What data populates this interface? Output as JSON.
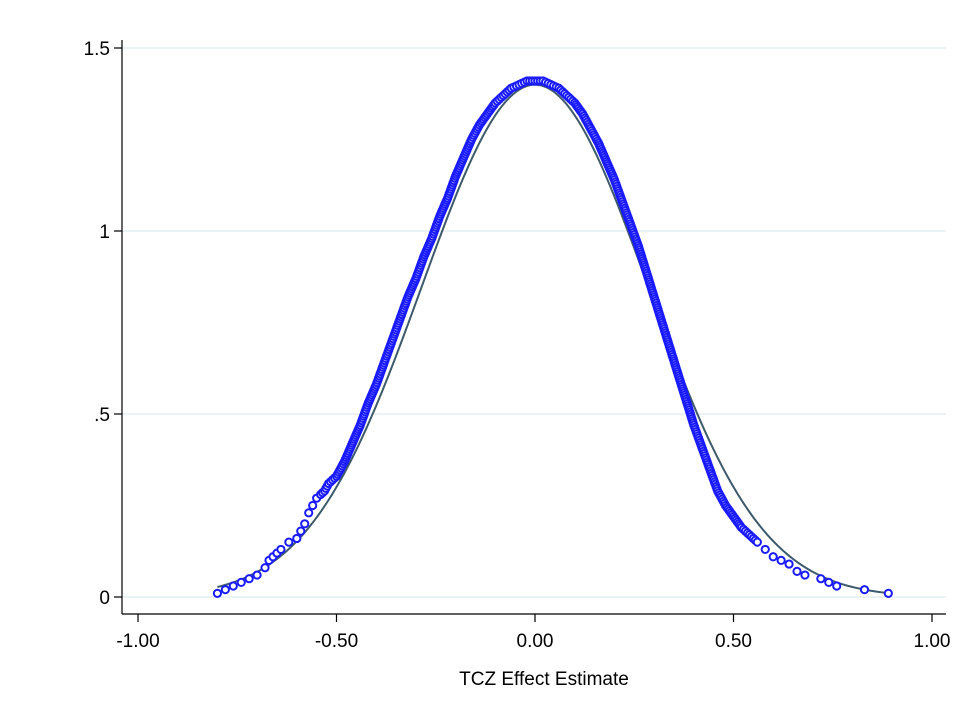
{
  "chart_data": {
    "type": "scatter",
    "title": "",
    "xlabel": "TCZ Effect Estimate",
    "ylabel": "",
    "xlim": [
      -1.0,
      1.0
    ],
    "ylim": [
      0,
      1.5
    ],
    "x_ticks": [
      {
        "value": -1.0,
        "label": "-1.00"
      },
      {
        "value": -0.5,
        "label": "-0.50"
      },
      {
        "value": 0.0,
        "label": "0.00"
      },
      {
        "value": 0.5,
        "label": "0.50"
      },
      {
        "value": 1.0,
        "label": "1.00"
      }
    ],
    "y_ticks": [
      {
        "value": 0,
        "label": "0"
      },
      {
        "value": 0.5,
        "label": ".5"
      },
      {
        "value": 1.0,
        "label": "1"
      },
      {
        "value": 1.5,
        "label": "1.5"
      }
    ],
    "grid": true,
    "legend": "none",
    "colors": {
      "markers": "#1a1aff",
      "curve": "#3d5a6c",
      "grid": "#e3eef2",
      "axis": "#000000"
    },
    "series": [
      {
        "kind": "markers",
        "points": [
          [
            -0.8,
            0.01
          ],
          [
            -0.78,
            0.02
          ],
          [
            -0.76,
            0.03
          ],
          [
            -0.74,
            0.04
          ],
          [
            -0.72,
            0.05
          ],
          [
            -0.7,
            0.06
          ],
          [
            -0.68,
            0.08
          ],
          [
            -0.67,
            0.1
          ],
          [
            -0.66,
            0.11
          ],
          [
            -0.65,
            0.12
          ],
          [
            -0.64,
            0.13
          ],
          [
            -0.62,
            0.15
          ],
          [
            -0.6,
            0.16
          ],
          [
            -0.59,
            0.18
          ],
          [
            -0.58,
            0.2
          ],
          [
            -0.57,
            0.23
          ],
          [
            -0.56,
            0.25
          ],
          [
            -0.55,
            0.27
          ],
          [
            -0.54,
            0.28
          ],
          [
            -0.53,
            0.29
          ],
          [
            -0.52,
            0.31
          ],
          [
            -0.5,
            0.33
          ],
          [
            -0.48,
            0.37
          ],
          [
            -0.46,
            0.42
          ],
          [
            -0.44,
            0.47
          ],
          [
            -0.42,
            0.53
          ],
          [
            -0.4,
            0.58
          ],
          [
            -0.38,
            0.64
          ],
          [
            -0.36,
            0.7
          ],
          [
            -0.34,
            0.76
          ],
          [
            -0.32,
            0.82
          ],
          [
            -0.3,
            0.87
          ],
          [
            -0.28,
            0.93
          ],
          [
            -0.26,
            0.98
          ],
          [
            -0.24,
            1.04
          ],
          [
            -0.22,
            1.09
          ],
          [
            -0.2,
            1.15
          ],
          [
            -0.18,
            1.2
          ],
          [
            -0.16,
            1.25
          ],
          [
            -0.14,
            1.29
          ],
          [
            -0.12,
            1.32
          ],
          [
            -0.1,
            1.35
          ],
          [
            -0.08,
            1.37
          ],
          [
            -0.06,
            1.39
          ],
          [
            -0.04,
            1.4
          ],
          [
            -0.02,
            1.41
          ],
          [
            0.0,
            1.41
          ],
          [
            0.02,
            1.41
          ],
          [
            0.04,
            1.4
          ],
          [
            0.06,
            1.39
          ],
          [
            0.08,
            1.37
          ],
          [
            0.1,
            1.35
          ],
          [
            0.12,
            1.32
          ],
          [
            0.14,
            1.28
          ],
          [
            0.16,
            1.24
          ],
          [
            0.18,
            1.19
          ],
          [
            0.2,
            1.14
          ],
          [
            0.22,
            1.08
          ],
          [
            0.24,
            1.02
          ],
          [
            0.26,
            0.96
          ],
          [
            0.28,
            0.89
          ],
          [
            0.3,
            0.82
          ],
          [
            0.32,
            0.75
          ],
          [
            0.34,
            0.68
          ],
          [
            0.36,
            0.61
          ],
          [
            0.38,
            0.54
          ],
          [
            0.4,
            0.47
          ],
          [
            0.42,
            0.41
          ],
          [
            0.44,
            0.35
          ],
          [
            0.46,
            0.29
          ],
          [
            0.48,
            0.25
          ],
          [
            0.5,
            0.22
          ],
          [
            0.52,
            0.19
          ],
          [
            0.54,
            0.17
          ],
          [
            0.56,
            0.15
          ],
          [
            0.58,
            0.13
          ],
          [
            0.6,
            0.11
          ],
          [
            0.62,
            0.1
          ],
          [
            0.64,
            0.09
          ],
          [
            0.66,
            0.07
          ],
          [
            0.68,
            0.06
          ],
          [
            0.72,
            0.05
          ],
          [
            0.74,
            0.04
          ],
          [
            0.76,
            0.03
          ],
          [
            0.83,
            0.02
          ],
          [
            0.89,
            0.01
          ]
        ]
      },
      {
        "kind": "fitted-curve",
        "mean": 0.0,
        "sd": 0.285
      }
    ]
  }
}
